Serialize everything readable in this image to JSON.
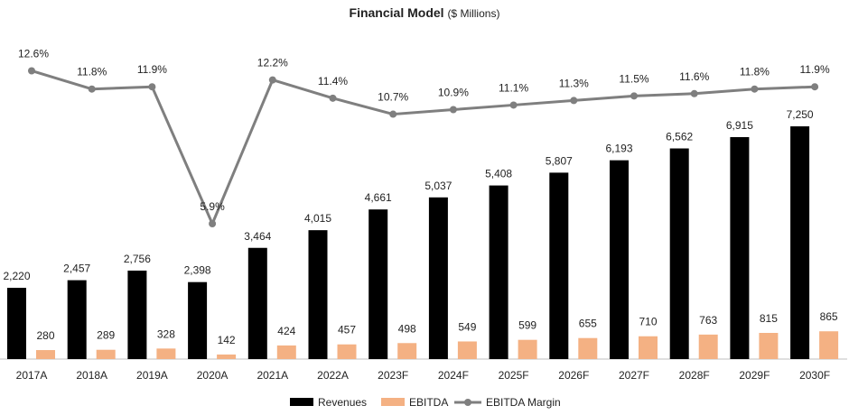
{
  "chart_data": {
    "type": "bar",
    "title": "Financial Model",
    "subtitle": "($ Millions)",
    "categories": [
      "2017A",
      "2018A",
      "2019A",
      "2020A",
      "2021A",
      "2022A",
      "2023F",
      "2024F",
      "2025F",
      "2026F",
      "2027F",
      "2028F",
      "2029F",
      "2030F"
    ],
    "series": [
      {
        "name": "Revenues",
        "kind": "bar",
        "color": "#000000",
        "values": [
          2220,
          2457,
          2756,
          2398,
          3464,
          4015,
          4661,
          5037,
          5408,
          5807,
          6193,
          6562,
          6915,
          7250
        ],
        "labels": [
          "2,220",
          "2,457",
          "2,756",
          "2,398",
          "3,464",
          "4,015",
          "4,661",
          "5,037",
          "5,408",
          "5,807",
          "6,193",
          "6,562",
          "6,915",
          "7,250"
        ]
      },
      {
        "name": "EBITDA",
        "kind": "bar",
        "color": "#F4B183",
        "values": [
          280,
          289,
          328,
          142,
          424,
          457,
          498,
          549,
          599,
          655,
          710,
          763,
          815,
          865
        ],
        "labels": [
          "280",
          "289",
          "328",
          "142",
          "424",
          "457",
          "498",
          "549",
          "599",
          "655",
          "710",
          "763",
          "815",
          "865"
        ]
      },
      {
        "name": "EBITDA Margin",
        "kind": "line",
        "color": "#7f7f7f",
        "values": [
          12.6,
          11.8,
          11.9,
          5.9,
          12.2,
          11.4,
          10.7,
          10.9,
          11.1,
          11.3,
          11.5,
          11.6,
          11.8,
          11.9
        ],
        "labels": [
          "12.6%",
          "11.8%",
          "11.9%",
          "5.9%",
          "12.2%",
          "11.4%",
          "10.7%",
          "10.9%",
          "11.1%",
          "11.3%",
          "11.5%",
          "11.6%",
          "11.8%",
          "11.9%"
        ]
      }
    ],
    "legend": {
      "position": "bottom"
    },
    "grid": false
  }
}
